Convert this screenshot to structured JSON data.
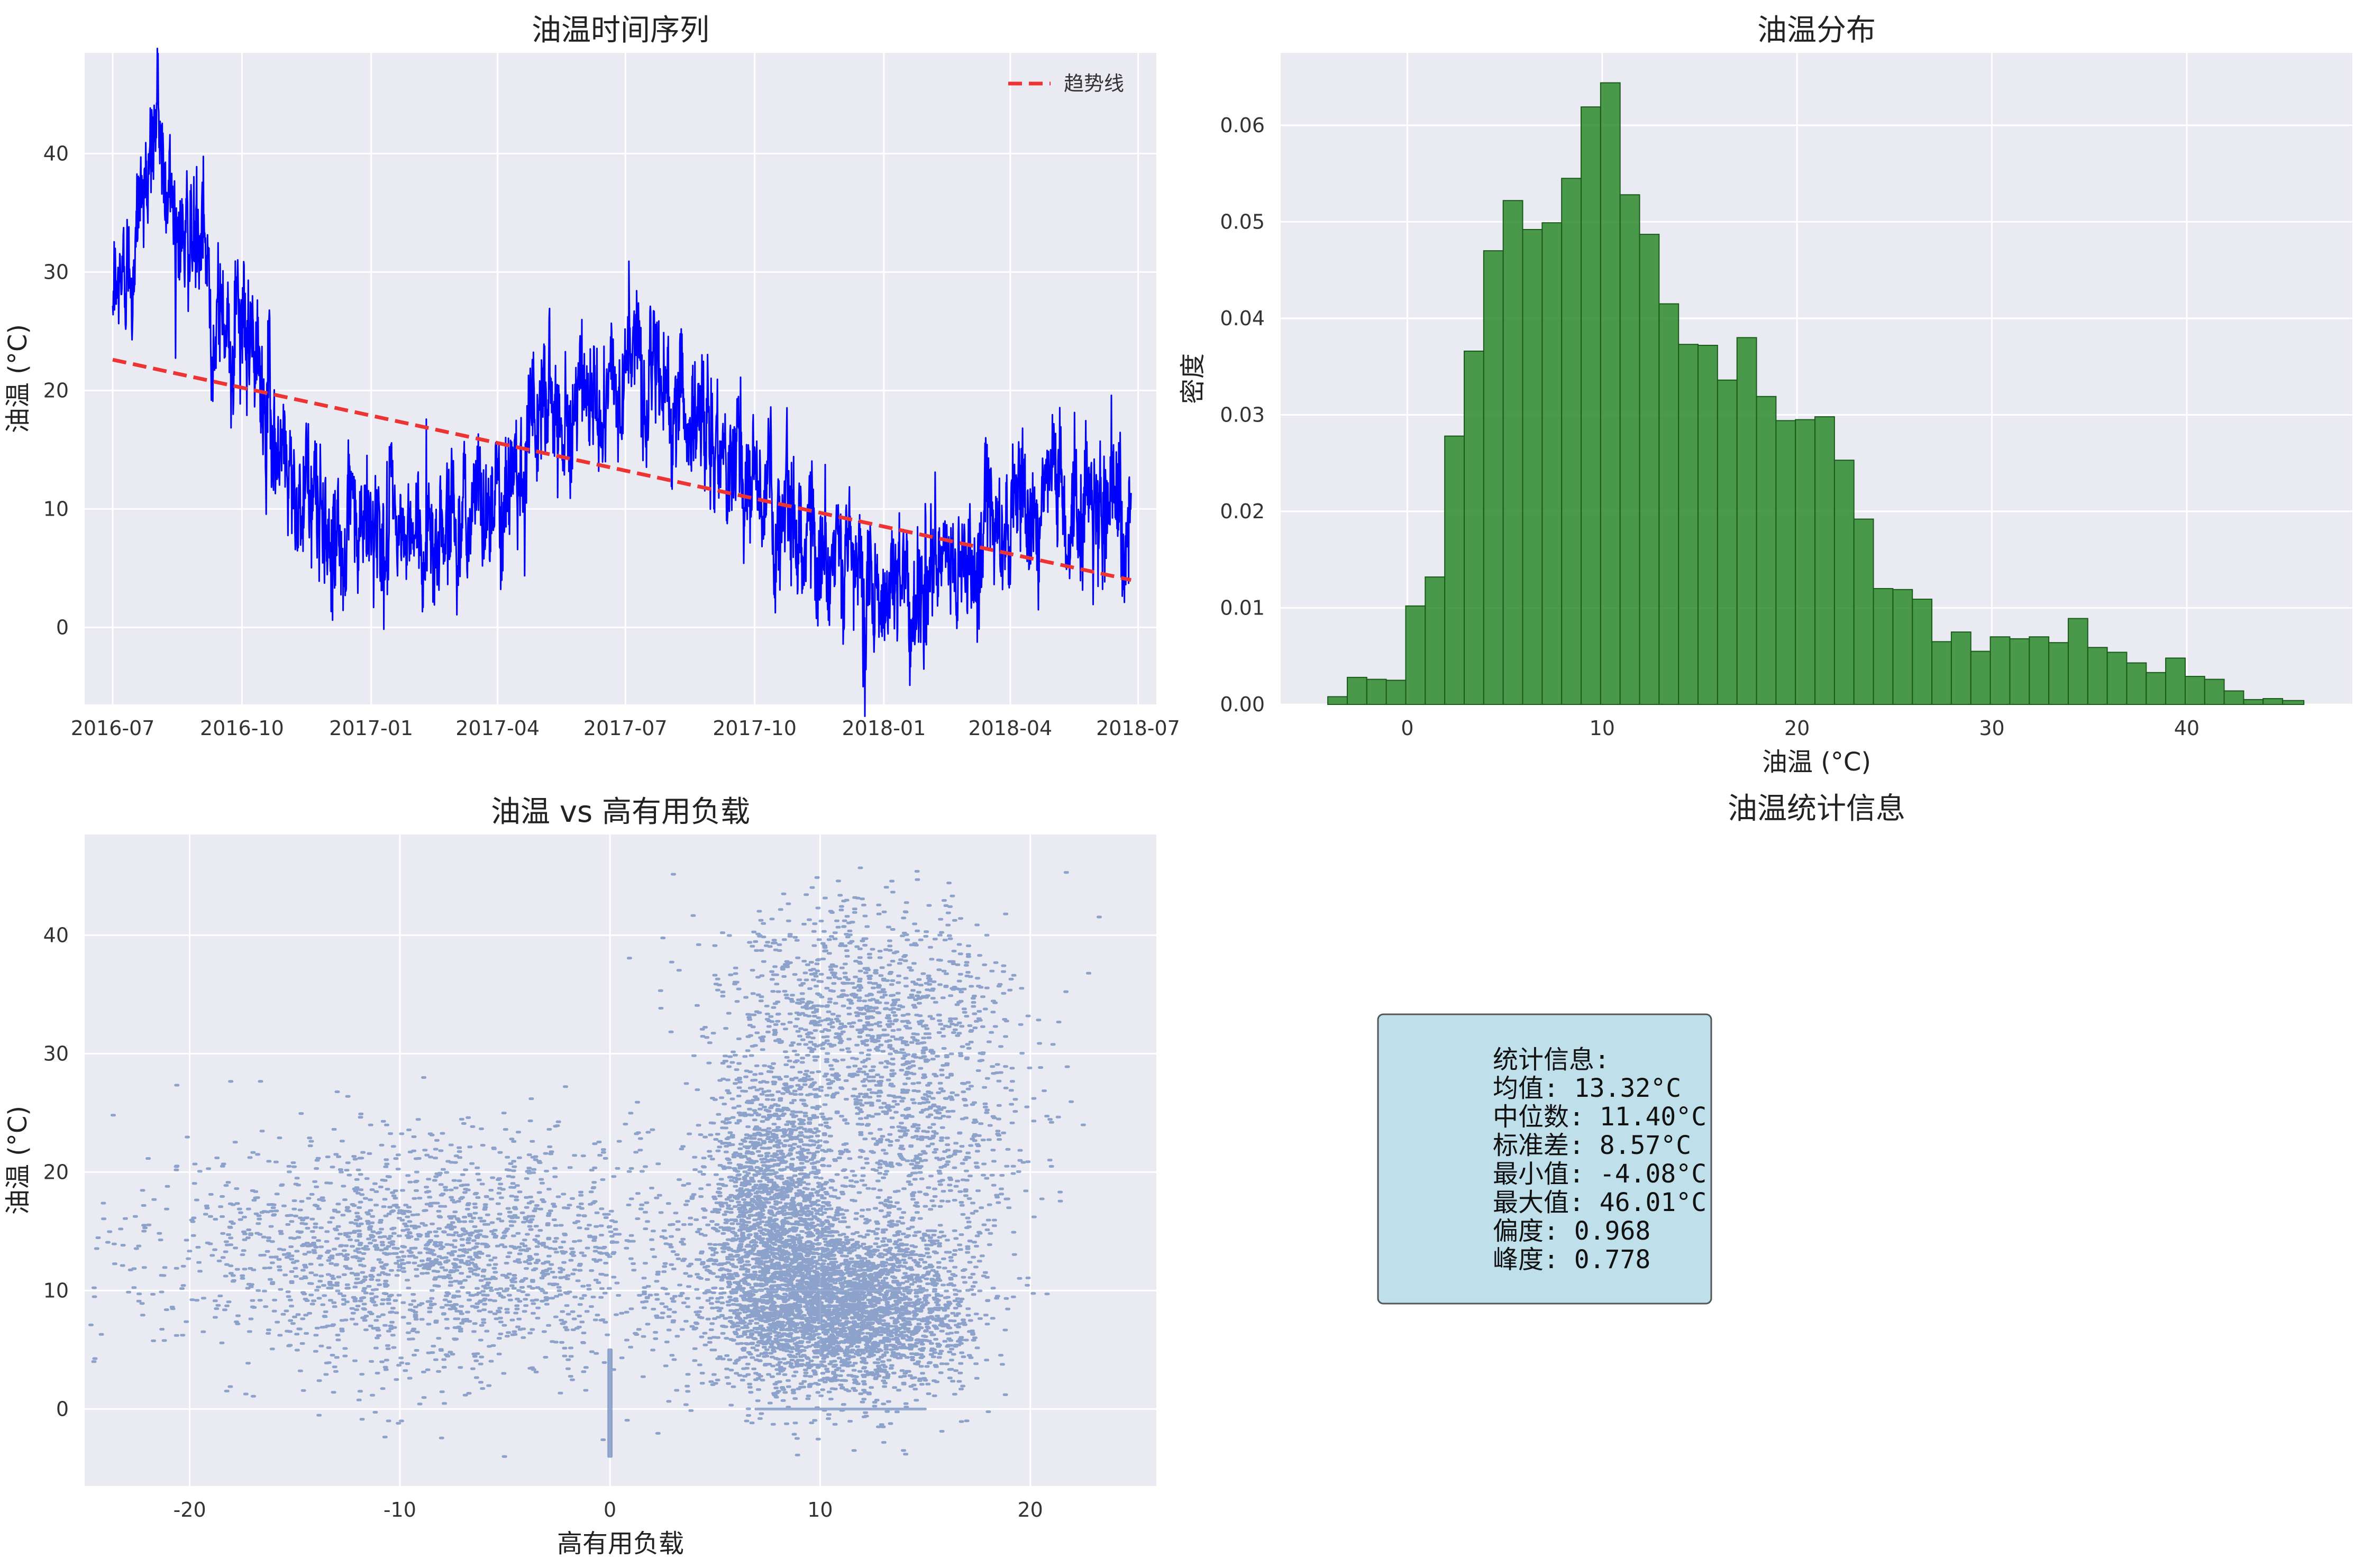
{
  "colors": {
    "panel_bg": "#eaeaf2",
    "grid": "#ffffff",
    "line": "#0000ff",
    "trend": "#ee3333",
    "hist_fill": "#2e8b2e",
    "hist_edge": "#1a5a1a",
    "scatter": "#4c72b0",
    "stats_box": "#bfe0ea",
    "stats_border": "#555555"
  },
  "chart_data": [
    {
      "type": "line",
      "title": "油温时间序列",
      "xlabel": "",
      "ylabel": "油温 (°C)",
      "x_ticks": [
        "2016-07",
        "2016-10",
        "2017-01",
        "2017-04",
        "2017-07",
        "2017-10",
        "2018-01",
        "2018-04",
        "2018-07"
      ],
      "y_ticks": [
        "0",
        "10",
        "20",
        "30",
        "40"
      ],
      "xlim": [
        "2016-06-11",
        "2018-07-14"
      ],
      "ylim": [
        -6.5,
        48.5
      ],
      "grid": true,
      "legend": {
        "position": "upper right",
        "entries": [
          "趋势线"
        ]
      },
      "series": [
        {
          "kind": "line",
          "x": [
            "2016-07-01",
            "2016-07-10",
            "2016-07-20",
            "2016-08-01",
            "2016-08-10",
            "2016-08-20",
            "2016-09-01",
            "2016-09-10",
            "2016-09-20",
            "2016-10-01",
            "2016-10-10",
            "2016-10-20",
            "2016-11-01",
            "2016-11-10",
            "2016-11-20",
            "2016-12-01",
            "2016-12-10",
            "2016-12-20",
            "2017-01-01",
            "2017-01-10",
            "2017-01-20",
            "2017-02-01",
            "2017-02-10",
            "2017-02-20",
            "2017-03-01",
            "2017-03-10",
            "2017-03-20",
            "2017-04-01",
            "2017-04-10",
            "2017-04-20",
            "2017-05-01",
            "2017-05-10",
            "2017-05-20",
            "2017-06-01",
            "2017-06-10",
            "2017-06-20",
            "2017-07-01",
            "2017-07-10",
            "2017-07-20",
            "2017-08-01",
            "2017-08-10",
            "2017-08-20",
            "2017-09-01",
            "2017-09-10",
            "2017-09-20",
            "2017-10-01",
            "2017-10-10",
            "2017-10-20",
            "2017-11-01",
            "2017-11-10",
            "2017-11-20",
            "2017-12-01",
            "2017-12-10",
            "2017-12-20",
            "2018-01-01",
            "2018-01-10",
            "2018-01-20",
            "2018-02-01",
            "2018-02-10",
            "2018-02-20",
            "2018-03-01",
            "2018-03-10",
            "2018-03-20",
            "2018-04-01",
            "2018-04-10",
            "2018-04-20",
            "2018-05-01",
            "2018-05-10",
            "2018-05-20",
            "2018-06-01",
            "2018-06-10",
            "2018-06-20",
            "2018-06-26"
          ],
          "y": [
            25,
            31,
            35,
            43,
            37,
            34,
            31,
            28,
            26,
            24,
            22,
            18,
            15,
            12,
            10,
            9,
            8,
            7,
            9,
            8,
            8,
            7,
            8,
            9,
            9,
            10,
            11,
            12,
            13,
            16,
            19,
            20,
            19,
            19,
            18,
            19,
            22,
            23,
            21,
            20,
            19,
            17,
            16,
            14,
            13,
            12,
            11,
            10,
            9,
            8,
            7,
            5,
            4,
            5,
            4,
            4,
            3,
            3,
            4,
            5,
            6,
            7,
            8,
            9,
            10,
            11,
            11,
            10,
            10,
            10,
            9,
            9,
            10
          ]
        },
        {
          "kind": "line",
          "name": "趋势线",
          "style": "dashed",
          "x": [
            "2016-07-01",
            "2018-06-26"
          ],
          "y": [
            22.6,
            4.0
          ]
        }
      ]
    },
    {
      "type": "bar",
      "title": "油温分布",
      "xlabel": "油温 (°C)",
      "ylabel": "密度",
      "x_ticks": [
        "0",
        "10",
        "20",
        "30",
        "40"
      ],
      "y_ticks": [
        "0.00",
        "0.01",
        "0.02",
        "0.03",
        "0.04",
        "0.05",
        "0.06"
      ],
      "xlim": [
        -6.5,
        48.5
      ],
      "ylim": [
        0,
        0.0675
      ],
      "grid": true,
      "bin_edges": [
        -4.08,
        -3.08,
        -2.08,
        -1.08,
        -0.08,
        0.92,
        1.92,
        2.92,
        3.92,
        4.92,
        5.92,
        6.92,
        7.92,
        8.92,
        9.92,
        10.92,
        11.92,
        12.92,
        13.92,
        14.92,
        15.92,
        16.92,
        17.92,
        18.92,
        19.92,
        20.92,
        21.92,
        22.92,
        23.92,
        24.92,
        25.92,
        26.92,
        27.92,
        28.92,
        29.92,
        30.92,
        31.92,
        32.92,
        33.92,
        34.92,
        35.92,
        36.92,
        37.92,
        38.92,
        39.92,
        40.92,
        41.92,
        42.92,
        43.92,
        44.92,
        46.01
      ],
      "values": [
        0.0008,
        0.0028,
        0.0026,
        0.0025,
        0.0102,
        0.0132,
        0.0278,
        0.0366,
        0.047,
        0.0522,
        0.0492,
        0.0499,
        0.0545,
        0.0619,
        0.0644,
        0.0528,
        0.0487,
        0.0415,
        0.0373,
        0.0372,
        0.0336,
        0.038,
        0.0319,
        0.0294,
        0.0295,
        0.0298,
        0.0253,
        0.0192,
        0.012,
        0.0119,
        0.0109,
        0.0065,
        0.0075,
        0.0055,
        0.007,
        0.0068,
        0.007,
        0.0064,
        0.0089,
        0.0059,
        0.0054,
        0.0043,
        0.0033,
        0.0048,
        0.0029,
        0.0026,
        0.0014,
        0.0005,
        0.0006,
        0.0004
      ]
    },
    {
      "type": "scatter",
      "title": "油温 vs 高有用负载",
      "xlabel": "高有用负载",
      "ylabel": "油温 (°C)",
      "x_ticks": [
        "-20",
        "-10",
        "0",
        "10",
        "20"
      ],
      "y_ticks": [
        "0",
        "10",
        "20",
        "30",
        "40"
      ],
      "xlim": [
        -25,
        26
      ],
      "ylim": [
        -6.5,
        48.5
      ],
      "grid": true,
      "clusters": [
        {
          "x_mean": 11.0,
          "x_sd": 3.0,
          "y_mean": 8.5,
          "y_sd": 3.5,
          "count": 3200
        },
        {
          "x_mean": 8.0,
          "x_sd": 1.6,
          "y_mean": 17.0,
          "y_sd": 5.5,
          "count": 1700
        },
        {
          "x_mean": 12.0,
          "x_sd": 3.5,
          "y_mean": 33.0,
          "y_sd": 5.0,
          "count": 1100
        },
        {
          "x_mean": -8.0,
          "x_sd": 6.5,
          "y_mean": 13.0,
          "y_sd": 5.0,
          "count": 2000
        },
        {
          "x_mean": 15.0,
          "x_sd": 2.5,
          "y_mean": 22.0,
          "y_sd": 5.0,
          "count": 500
        }
      ],
      "lines": [
        {
          "x": 0.0,
          "y_from": -4.0,
          "y_to": 5.0
        },
        {
          "y": 0.0,
          "x_from": 7.0,
          "x_to": 15.0
        }
      ]
    }
  ],
  "stats_panel": {
    "title": "油温统计信息",
    "lines": [
      "统计信息:",
      "均值: 13.32°C",
      "中位数: 11.40°C",
      "标准差: 8.57°C",
      "最小值: -4.08°C",
      "最大值: 46.01°C",
      "偏度: 0.968",
      "峰度: 0.778"
    ]
  }
}
